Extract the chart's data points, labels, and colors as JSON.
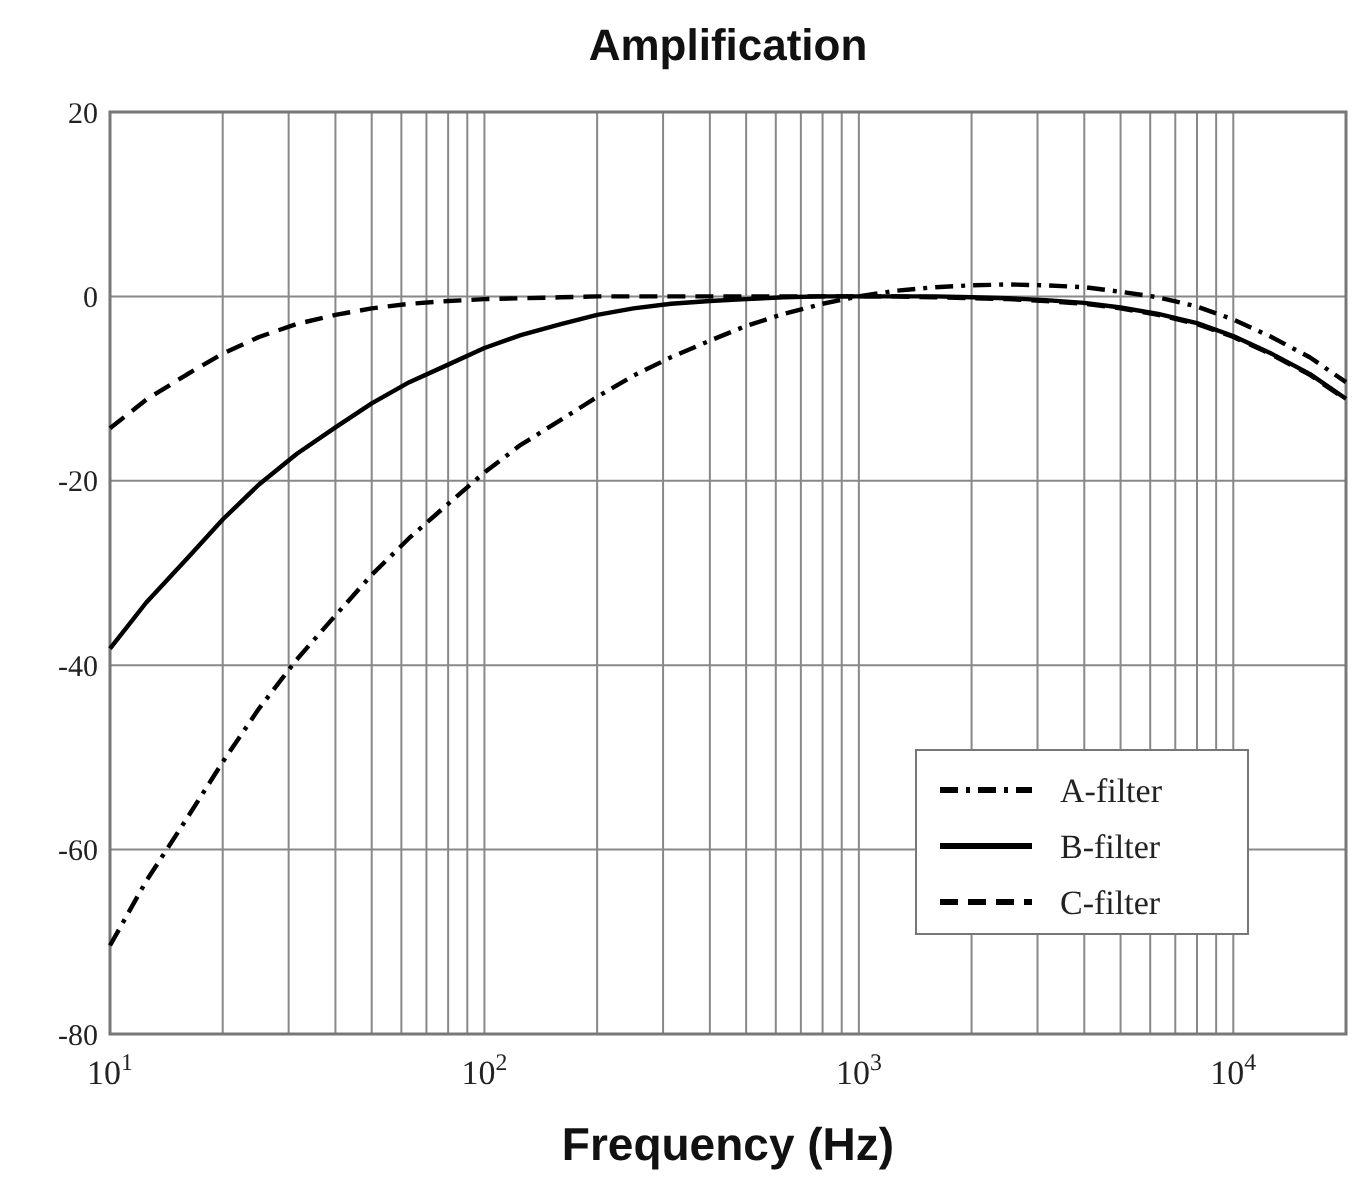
{
  "chart_data": {
    "type": "line",
    "title": "Amplification",
    "xlabel": "Frequency (Hz)",
    "log": "x",
    "grid": true,
    "legend": "right",
    "marker": "none",
    "xlim": [
      10,
      20000
    ],
    "ylim": [
      -80,
      20
    ],
    "xticks": [
      {
        "value": 10,
        "label": "10$^{1}$"
      },
      {
        "value": 20,
        "label": null
      },
      {
        "value": 30,
        "label": null
      },
      {
        "value": 40,
        "label": null
      },
      {
        "value": 50,
        "label": null
      },
      {
        "value": 60,
        "label": null
      },
      {
        "value": 70,
        "label": null
      },
      {
        "value": 80,
        "label": null
      },
      {
        "value": 90,
        "label": null
      },
      {
        "value": 100,
        "label": "10$^{2}$"
      },
      {
        "value": 200,
        "label": null
      },
      {
        "value": 300,
        "label": null
      },
      {
        "value": 400,
        "label": null
      },
      {
        "value": 500,
        "label": null
      },
      {
        "value": 600,
        "label": null
      },
      {
        "value": 700,
        "label": null
      },
      {
        "value": 800,
        "label": null
      },
      {
        "value": 900,
        "label": null
      },
      {
        "value": 1000,
        "label": "10$^{3}$"
      },
      {
        "value": 2000,
        "label": null
      },
      {
        "value": 3000,
        "label": null
      },
      {
        "value": 4000,
        "label": null
      },
      {
        "value": 5000,
        "label": null
      },
      {
        "value": 6000,
        "label": null
      },
      {
        "value": 7000,
        "label": null
      },
      {
        "value": 8000,
        "label": null
      },
      {
        "value": 9000,
        "label": null
      },
      {
        "value": 10000,
        "label": "10$^{4}$"
      }
    ],
    "yticks": [
      -80,
      -60,
      -40,
      -20,
      0,
      20
    ],
    "x": [
      10,
      12.5,
      16,
      20,
      25,
      31.5,
      40,
      50,
      63,
      80,
      100,
      125,
      160,
      200,
      250,
      315,
      400,
      500,
      630,
      800,
      1000,
      1250,
      1600,
      2000,
      2500,
      3150,
      4000,
      5000,
      6300,
      8000,
      10000,
      12500,
      16000,
      20000
    ],
    "series": [
      {
        "name": "A-filter",
        "color": "#000000",
        "line_style": "dashdot",
        "values": [
          -70.4,
          -63.4,
          -56.7,
          -50.5,
          -44.7,
          -39.4,
          -34.6,
          -30.2,
          -26.2,
          -22.5,
          -19.1,
          -16.1,
          -13.4,
          -10.9,
          -8.6,
          -6.6,
          -4.8,
          -3.2,
          -1.9,
          -0.8,
          0,
          0.6,
          1.0,
          1.2,
          1.3,
          1.2,
          1.0,
          0.5,
          -0.1,
          -1.1,
          -2.5,
          -4.3,
          -6.6,
          -9.3
        ]
      },
      {
        "name": "B-filter",
        "color": "#000000",
        "line_style": "solid",
        "values": [
          -38.2,
          -33.2,
          -28.5,
          -24.2,
          -20.4,
          -17.1,
          -14.2,
          -11.6,
          -9.3,
          -7.4,
          -5.6,
          -4.2,
          -3.0,
          -2.0,
          -1.3,
          -0.8,
          -0.5,
          -0.3,
          -0.1,
          0,
          0,
          0,
          0,
          -0.1,
          -0.2,
          -0.4,
          -0.7,
          -1.2,
          -1.9,
          -2.9,
          -4.3,
          -6.1,
          -8.4,
          -11.1
        ]
      },
      {
        "name": "C-filter",
        "color": "#000000",
        "line_style": "dashed",
        "values": [
          -14.3,
          -11.2,
          -8.5,
          -6.2,
          -4.4,
          -3.0,
          -2.0,
          -1.3,
          -0.8,
          -0.5,
          -0.3,
          -0.2,
          -0.1,
          0,
          0,
          0,
          0,
          0,
          0,
          0,
          0,
          0,
          -0.1,
          -0.2,
          -0.3,
          -0.5,
          -0.8,
          -1.3,
          -2.0,
          -3.0,
          -4.4,
          -6.2,
          -8.5,
          -11.2
        ]
      }
    ]
  }
}
